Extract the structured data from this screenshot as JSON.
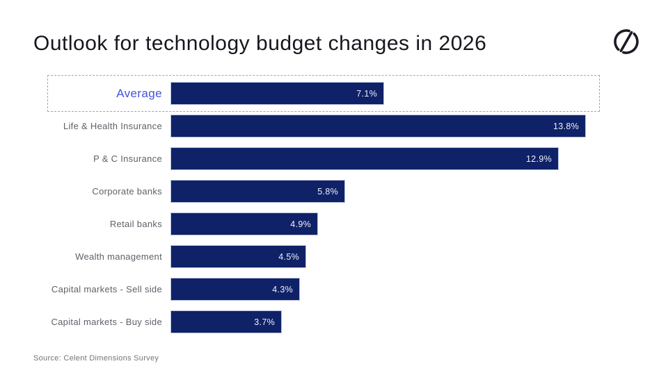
{
  "header": {
    "logo_name": "circle-slash-brand-mark"
  },
  "footer": {
    "source": "Source: Celent Dimensions Survey"
  },
  "colors": {
    "bar": "#0f2167",
    "bar_border": "#b9c1e0",
    "highlight_border": "#8ea2ee",
    "accent_label": "#4152d9",
    "title_text": "#16161e",
    "category_label": "#5f5f68",
    "value_text": "#eef0fa",
    "source_text": "#73737c",
    "background": "#ffffff"
  },
  "chart_data": {
    "type": "bar",
    "orientation": "horizontal",
    "title": "Outlook for technology budget changes in 2026",
    "categories": [
      "Average",
      "Life & Health Insurance",
      "P & C Insurance",
      "Corporate banks",
      "Retail banks",
      "Wealth management",
      "Capital markets - Sell side",
      "Capital markets - Buy side"
    ],
    "values": [
      7.1,
      13.8,
      12.9,
      5.8,
      4.9,
      4.5,
      4.3,
      3.7
    ],
    "value_labels": [
      "7.1%",
      "13.8%",
      "12.9%",
      "5.8%",
      "4.9%",
      "4.5%",
      "4.3%",
      "3.7%"
    ],
    "unit": "%",
    "highlighted_category": "Average",
    "xlim": [
      0,
      13.8
    ],
    "grid": false,
    "legend": false,
    "value_label_position": "inside-end"
  }
}
